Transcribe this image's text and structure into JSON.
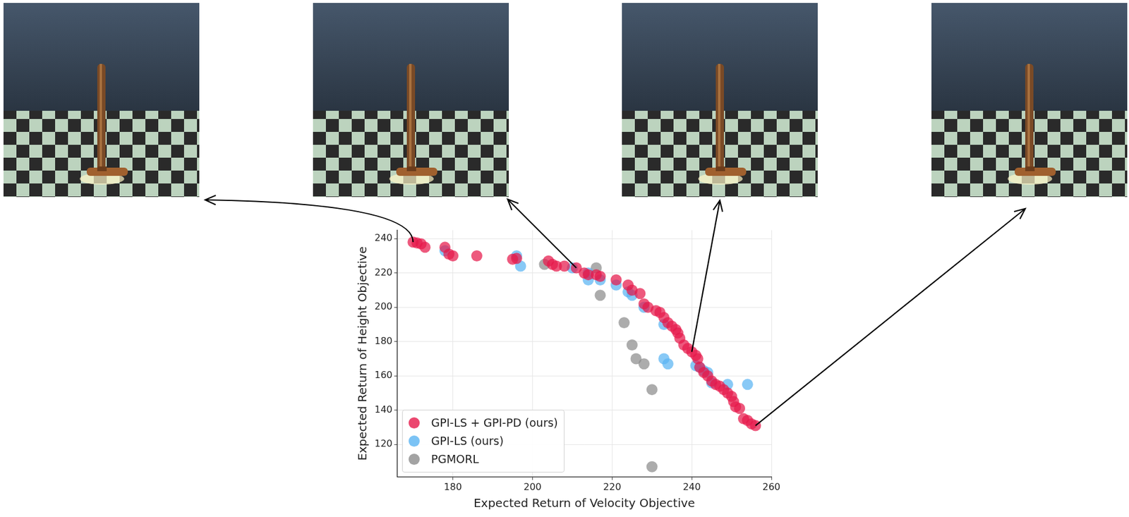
{
  "chart_data": {
    "type": "scatter",
    "x_label": "Expected Return of Velocity Objective",
    "y_label": "Expected Return of Height Objective",
    "xlim": [
      166,
      260
    ],
    "ylim": [
      101,
      245
    ],
    "xticks": [
      180,
      200,
      220,
      240,
      260
    ],
    "yticks": [
      120,
      140,
      160,
      180,
      200,
      220,
      240
    ],
    "grid": true,
    "legend": "lower left",
    "marker": "circle",
    "series": [
      {
        "name": "GPI-LS + GPI-PD (ours)",
        "color": "#e6194b",
        "x": [
          170,
          171,
          172,
          173,
          178,
          179,
          180,
          186,
          195,
          196,
          204,
          205,
          206,
          208,
          211,
          213,
          214,
          216,
          217,
          221,
          224,
          225,
          227,
          228,
          229,
          231,
          232,
          233,
          234,
          235,
          236,
          236.5,
          237,
          238,
          239,
          240,
          241,
          241.5,
          242,
          243,
          244,
          245,
          246,
          247,
          248,
          249,
          250,
          250.5,
          251,
          252,
          253,
          254,
          255,
          256
        ],
        "values": [
          238,
          237.5,
          237,
          235,
          235,
          231,
          230,
          230,
          228,
          228.5,
          227,
          225,
          224,
          224,
          223,
          220,
          219,
          219,
          218,
          216,
          213,
          210,
          208,
          202,
          200,
          198,
          197,
          194,
          191,
          189,
          187,
          185,
          182,
          178,
          176,
          174,
          172,
          170,
          165,
          162,
          160,
          157,
          155,
          154,
          152,
          150,
          148,
          145,
          142,
          141,
          135,
          134,
          132,
          131
        ]
      },
      {
        "name": "GPI-LS (ours)",
        "color": "#5ab4f2",
        "x": [
          178,
          196,
          197,
          210,
          214,
          214,
          217,
          221,
          224,
          225,
          228,
          233,
          233,
          234,
          241,
          242,
          243,
          244,
          245,
          249,
          254
        ],
        "values": [
          233,
          230,
          224,
          223,
          220,
          216,
          216,
          213,
          209,
          207,
          200,
          190,
          170,
          167,
          166,
          165,
          163,
          162,
          156,
          155,
          155
        ]
      },
      {
        "name": "PGMORL",
        "color": "#8c8c8c",
        "x": [
          203,
          216,
          217,
          223,
          225,
          226,
          228,
          230,
          230
        ],
        "values": [
          225,
          223,
          207,
          191,
          178,
          170,
          167,
          152,
          107
        ]
      }
    ]
  }
}
